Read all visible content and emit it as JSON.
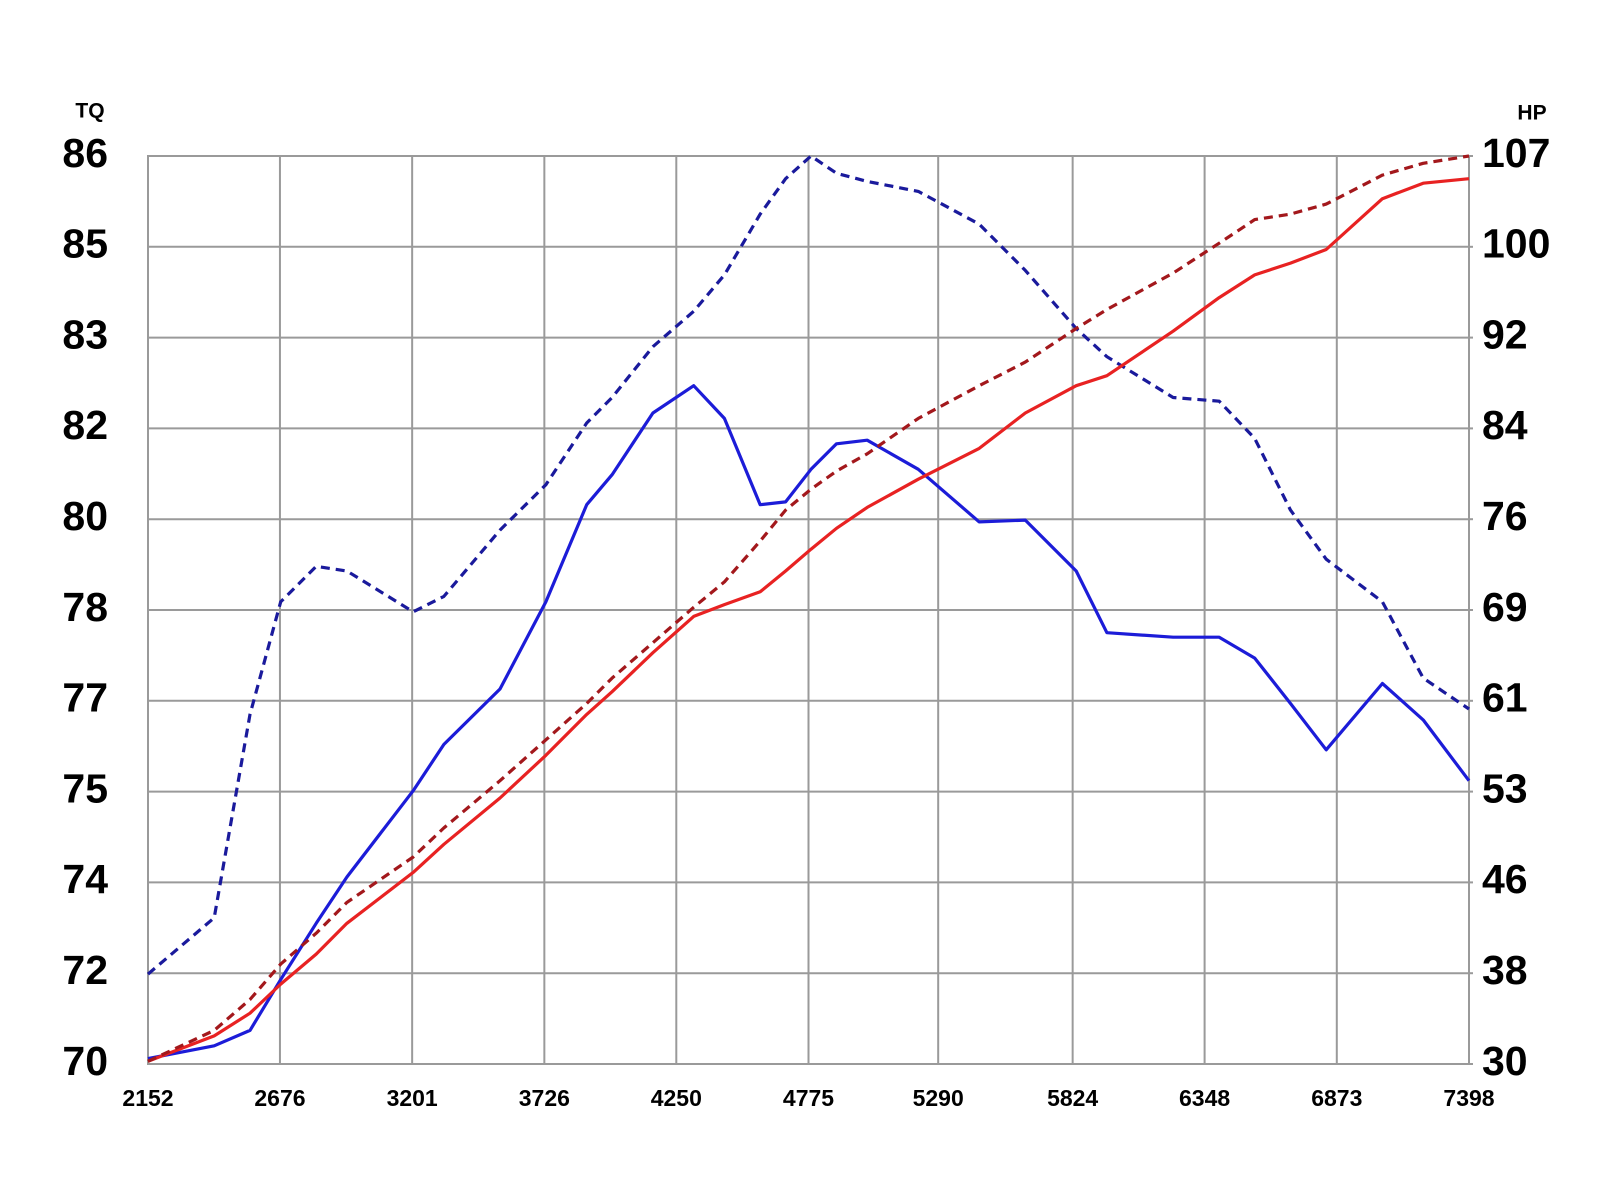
{
  "chart_data": {
    "type": "line",
    "ylabel": "TQ",
    "y2label": "HP",
    "x": [
      2152,
      2415,
      2557,
      2679,
      2820,
      2942,
      3205,
      3327,
      3550,
      3732,
      3894,
      3995,
      4157,
      4319,
      4441,
      4583,
      4684,
      4785,
      4886,
      5008,
      5211,
      5453,
      5636,
      5838,
      5960,
      6223,
      6406,
      6547,
      6689,
      6831,
      7054,
      7216,
      7398
    ],
    "xlim": [
      2152,
      7398
    ],
    "xticks": [
      2152,
      2676,
      3201,
      3726,
      4250,
      4775,
      5290,
      5824,
      6348,
      6873,
      7398
    ],
    "ylim": [
      70,
      86
    ],
    "yticks": [
      70,
      72,
      74,
      75,
      77,
      78,
      80,
      82,
      83,
      85,
      86
    ],
    "y2lim": [
      30,
      107
    ],
    "y2ticks": [
      30,
      38,
      46,
      53,
      61,
      69,
      76,
      84,
      92,
      100,
      107
    ],
    "grid": true,
    "series": [
      {
        "color": "#1c1cd8",
        "dashed": false,
        "values": [
          70.12,
          70.4,
          70.74,
          71.86,
          73.1,
          74.06,
          75.02,
          76.04,
          77.13,
          78.18,
          80.32,
          80.98,
          82.17,
          82.47,
          82.11,
          80.32,
          80.38,
          81.1,
          81.66,
          81.74,
          81.1,
          79.94,
          79.98,
          78.86,
          77.75,
          77.7,
          77.7,
          77.47,
          76.94,
          75.92,
          77.19,
          76.58,
          75.24
        ]
      },
      {
        "color": "#1a1a9c",
        "dashed": true,
        "values": [
          71.98,
          73.22,
          76.7,
          78.18,
          78.96,
          78.86,
          77.98,
          78.3,
          79.76,
          80.76,
          82.06,
          82.34,
          82.9,
          83.58,
          84.38,
          85.36,
          85.75,
          86,
          85.81,
          85.72,
          85.61,
          85.25,
          84.48,
          83.2,
          82.79,
          82.34,
          82.3,
          81.78,
          80.2,
          79.12,
          78.18,
          77.25,
          76.82
        ]
      },
      {
        "color": "#e82222",
        "dashed": false,
        "axis": "y2",
        "values": [
          30.24,
          32.48,
          34.48,
          37.04,
          39.68,
          42.4,
          46.77,
          48.94,
          52.51,
          56.2,
          59.8,
          61.8,
          65.24,
          68.44,
          69.42,
          70.4,
          72.01,
          73.69,
          75.3,
          77.04,
          79.52,
          82.24,
          85.36,
          87.76,
          88.64,
          92.56,
          95.52,
          97.52,
          98.56,
          99.76,
          103.71,
          104.9,
          105.25
        ]
      },
      {
        "color": "#a3181c",
        "dashed": true,
        "axis": "y2",
        "values": [
          30.24,
          32.96,
          35.68,
          38.8,
          41.52,
          44.24,
          47.96,
          50.2,
          53.96,
          57.56,
          60.76,
          63,
          66.12,
          69.21,
          71.17,
          74.32,
          76.8,
          78.64,
          80.24,
          81.76,
          84.88,
          87.76,
          89.84,
          92.8,
          94.48,
          97.68,
          100.28,
          102.1,
          102.52,
          103.29,
          105.53,
          106.44,
          107
        ]
      }
    ]
  }
}
